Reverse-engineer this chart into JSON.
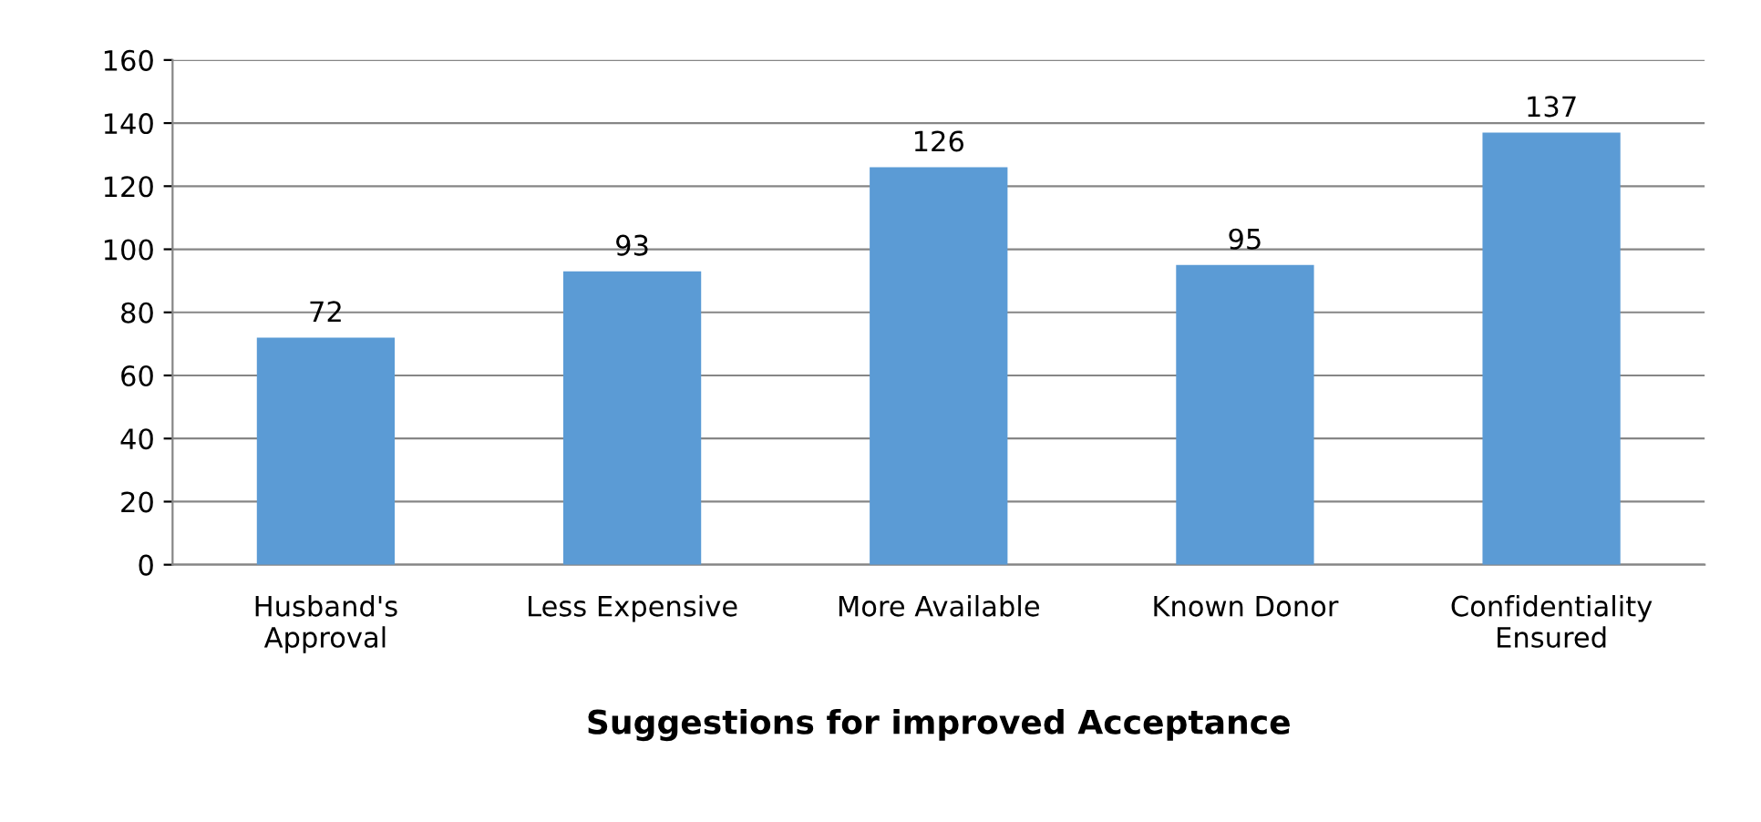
{
  "chart_data": {
    "type": "bar",
    "xlabel": "Suggestions for improved Acceptance",
    "categories": [
      "Husband's\nApproval",
      "Less Expensive",
      "More Available",
      "Known Donor",
      "Confidentiality\nEnsured"
    ],
    "values": [
      72,
      93,
      126,
      95,
      137
    ],
    "color": "#5b9bd5",
    "ylim": [
      0,
      160
    ],
    "yticks": [
      0,
      20,
      40,
      60,
      80,
      100,
      120,
      140,
      160
    ],
    "grid": "y",
    "data_labels": true
  }
}
